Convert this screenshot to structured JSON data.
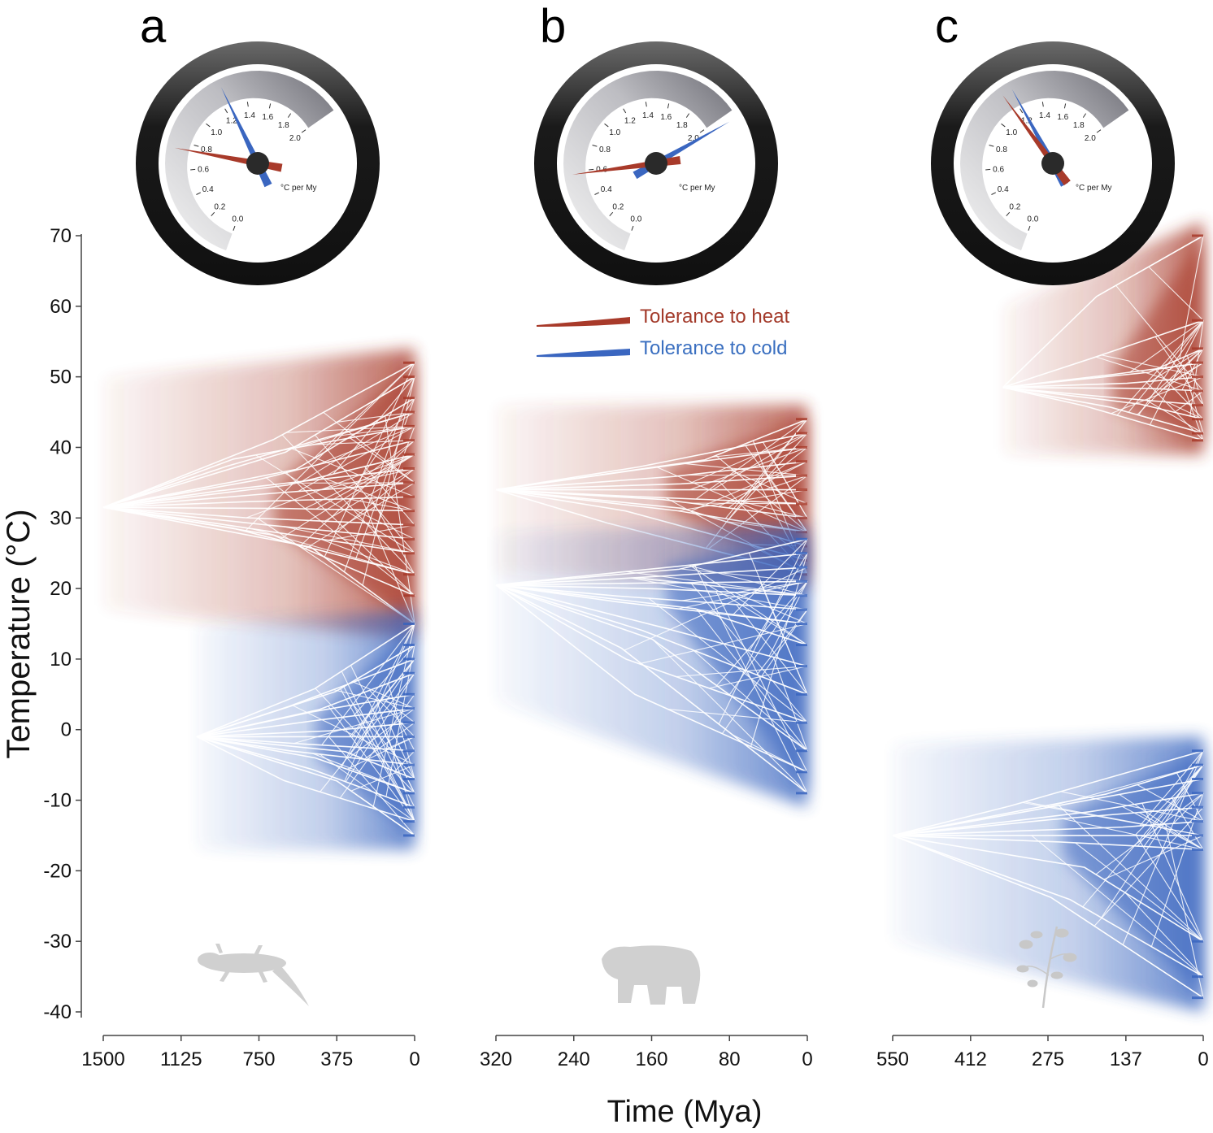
{
  "colors": {
    "heat": "#a83a2a",
    "cold": "#3a66c0",
    "axis": "#444444",
    "silhouette": "#d0d0d0"
  },
  "chart_data": {
    "type": "line",
    "ylabel": "Temperature (°C)",
    "xlabel": "Time (Mya)",
    "ylim": [
      -40,
      70
    ],
    "yticks": [
      "70",
      "60",
      "50",
      "40",
      "30",
      "20",
      "10",
      "0",
      "-10",
      "-20",
      "-30",
      "-40"
    ],
    "yvalues": [
      70,
      60,
      50,
      40,
      30,
      20,
      10,
      0,
      -10,
      -20,
      -30,
      -40
    ],
    "legend": {
      "heat": "Tolerance to heat",
      "cold": "Tolerance to cold",
      "position": "top-center"
    },
    "gauge_ticks": [
      "0.0",
      "0.2",
      "0.4",
      "0.6",
      "0.8",
      "1.0",
      "1.2",
      "1.4",
      "1.6",
      "1.8",
      "2.0"
    ],
    "gauge_unit": "°C per My",
    "panels": [
      {
        "letter": "a",
        "taxon": "ectotherms (lizard)",
        "xlim": [
          1500,
          0
        ],
        "xticks": [
          "1500",
          "1125",
          "750",
          "375",
          "0"
        ],
        "xvalues": [
          1500,
          1125,
          750,
          375,
          0
        ],
        "gauge": {
          "heat_rate": 0.75,
          "cold_rate": 1.25
        },
        "series": [
          {
            "name": "Tolerance to heat",
            "root_time": 1500,
            "root": 31.5,
            "band": [
              17,
              50
            ],
            "tips": [
              52,
              50,
              47,
              45,
              43,
              41,
              39,
              37,
              35,
              33,
              31,
              29,
              27,
              25,
              22,
              19,
              15
            ]
          },
          {
            "name": "Tolerance to cold",
            "root_time": 1050,
            "root": -1,
            "band": [
              -17,
              15
            ],
            "tips": [
              15,
              12,
              10,
              8,
              5,
              3,
              1,
              -1,
              -3,
              -5,
              -7,
              -9,
              -11,
              -13,
              -15
            ]
          }
        ]
      },
      {
        "letter": "b",
        "taxon": "endotherms (bear)",
        "xlim": [
          320,
          0
        ],
        "xticks": [
          "320",
          "240",
          "160",
          "80",
          "0"
        ],
        "xvalues": [
          320,
          240,
          160,
          80,
          0
        ],
        "gauge": {
          "heat_rate": 0.58,
          "cold_rate": 2.05
        },
        "series": [
          {
            "name": "Tolerance to heat",
            "root_time": 320,
            "root": 34,
            "band": [
              22,
              46
            ],
            "tips": [
              44,
              42,
              40,
              38,
              36,
              34,
              32,
              30,
              28,
              26,
              24,
              22
            ]
          },
          {
            "name": "Tolerance to cold",
            "root_time": 320,
            "root": 20.5,
            "band": [
              4,
              28
            ],
            "tips": [
              27,
              25,
              23,
              21,
              19,
              17,
              15,
              12,
              9,
              5,
              1,
              -3,
              -6,
              -9
            ]
          }
        ]
      },
      {
        "letter": "c",
        "taxon": "plants",
        "xlim": [
          550,
          0
        ],
        "xticks": [
          "550",
          "412",
          "275",
          "137",
          "0"
        ],
        "xvalues": [
          550,
          412,
          275,
          137,
          0
        ],
        "gauge": {
          "heat_rate": 1.15,
          "cold_rate": 1.22
        },
        "series": [
          {
            "name": "Tolerance to heat",
            "root_time": 355,
            "root": 48.5,
            "band": [
              39,
              60
            ],
            "tips": [
              70,
              58,
              54,
              52,
              50,
              48,
              46,
              44,
              42,
              41
            ]
          },
          {
            "name": "Tolerance to cold",
            "root_time": 550,
            "root": -15,
            "band": [
              -30,
              -2
            ],
            "tips": [
              -3,
              -5,
              -7,
              -9,
              -11,
              -13,
              -15,
              -17,
              -30,
              -35,
              -38
            ]
          }
        ]
      }
    ]
  }
}
